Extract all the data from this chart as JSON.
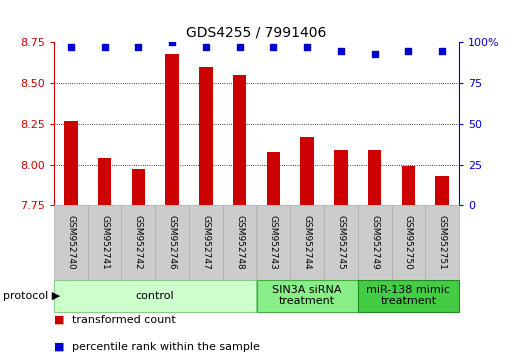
{
  "title": "GDS4255 / 7991406",
  "samples": [
    "GSM952740",
    "GSM952741",
    "GSM952742",
    "GSM952746",
    "GSM952747",
    "GSM952748",
    "GSM952743",
    "GSM952744",
    "GSM952745",
    "GSM952749",
    "GSM952750",
    "GSM952751"
  ],
  "bar_values": [
    8.27,
    8.04,
    7.97,
    8.68,
    8.6,
    8.55,
    8.08,
    8.17,
    8.09,
    8.09,
    7.99,
    7.93
  ],
  "percentile_values": [
    97,
    97,
    97,
    100,
    97,
    97,
    97,
    97,
    95,
    93,
    95,
    95
  ],
  "bar_color": "#cc0000",
  "dot_color": "#0000cc",
  "ylim_left": [
    7.75,
    8.75
  ],
  "ylim_right": [
    0,
    100
  ],
  "yticks_left": [
    7.75,
    8.0,
    8.25,
    8.5,
    8.75
  ],
  "yticks_right": [
    0,
    25,
    50,
    75,
    100
  ],
  "grid_lines": [
    8.0,
    8.25,
    8.5
  ],
  "groups": [
    {
      "label": "control",
      "start": 0,
      "end": 6,
      "facecolor": "#ccffcc",
      "edgecolor": "#88cc88"
    },
    {
      "label": "SIN3A siRNA\ntreatment",
      "start": 6,
      "end": 9,
      "facecolor": "#88ee88",
      "edgecolor": "#44aa44"
    },
    {
      "label": "miR-138 mimic\ntreatment",
      "start": 9,
      "end": 12,
      "facecolor": "#44cc44",
      "edgecolor": "#228822"
    }
  ],
  "protocol_label": "protocol",
  "legend_items": [
    {
      "color": "#cc0000",
      "label": "transformed count"
    },
    {
      "color": "#0000cc",
      "label": "percentile rank within the sample"
    }
  ],
  "sample_box_facecolor": "#cccccc",
  "sample_box_edgecolor": "#aaaaaa",
  "title_fontsize": 10,
  "axis_tick_fontsize": 8,
  "sample_label_fontsize": 6.5,
  "group_label_fontsize": 8,
  "legend_fontsize": 8,
  "protocol_fontsize": 8
}
